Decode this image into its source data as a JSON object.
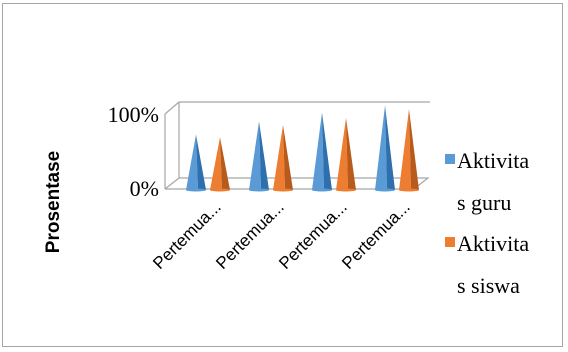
{
  "chart_data": {
    "type": "bar",
    "shape": "cone-3d",
    "title": "",
    "ylabel": "Prosentase",
    "xlabel": "",
    "categories": [
      "Pertemua...",
      "Pertemua...",
      "Pertemua...",
      "Pertemua..."
    ],
    "series": [
      {
        "name": "Aktivitas guru",
        "legend_lines": [
          "Aktivita",
          "s guru"
        ],
        "color": "#5b9bd5",
        "shade": "#2e6fae",
        "values": [
          63,
          78,
          88,
          96
        ]
      },
      {
        "name": "Aktivitas siswa",
        "legend_lines": [
          "Aktivita",
          "s siswa"
        ],
        "color": "#ed7d31",
        "shade": "#b85a1b",
        "values": [
          60,
          74,
          82,
          92
        ]
      }
    ],
    "ylim": [
      0,
      100
    ],
    "y_ticks": [
      "0%",
      "100%"
    ],
    "legend_position": "right",
    "gridlines": true
  }
}
